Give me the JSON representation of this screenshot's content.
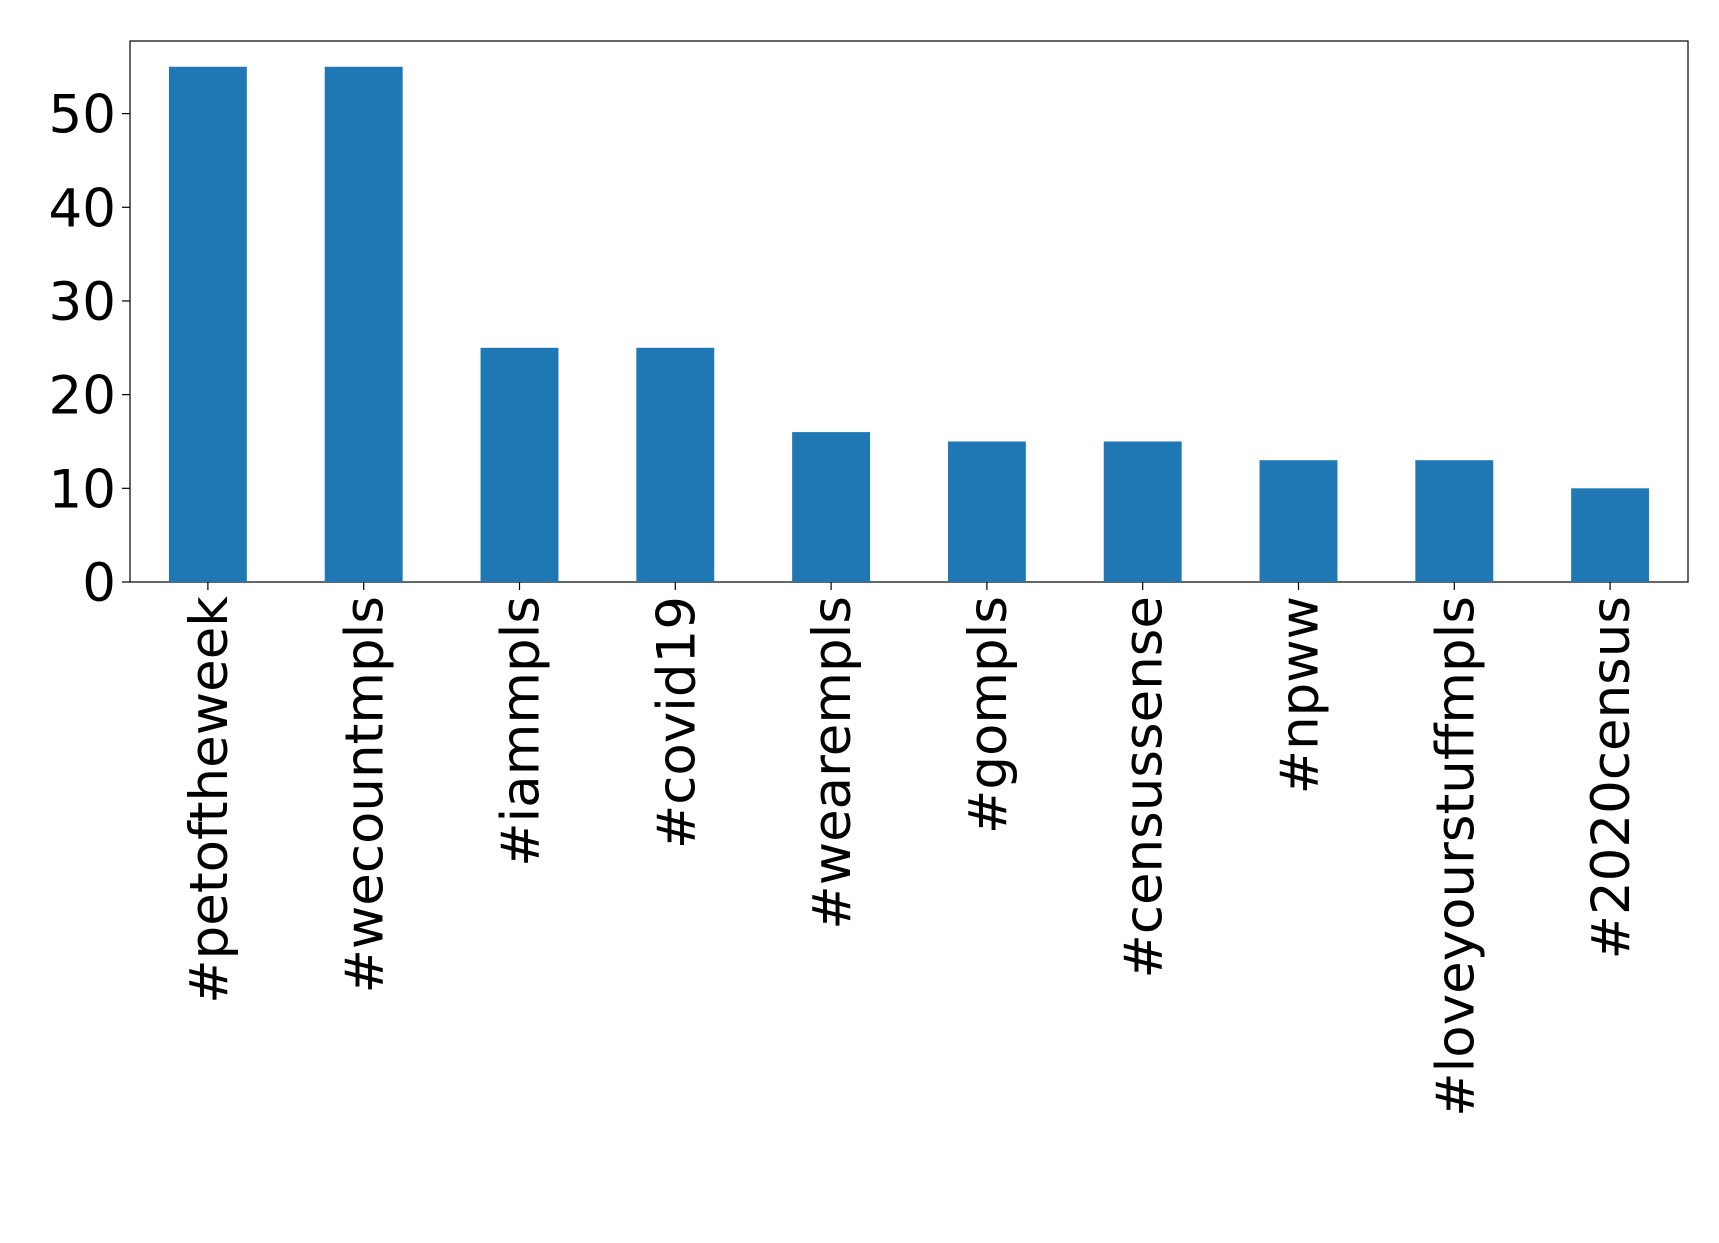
{
  "chart_data": {
    "type": "bar",
    "categories": [
      "#petoftheweek",
      "#wecountmpls",
      "#iammpls",
      "#covid19",
      "#wearempls",
      "#gompls",
      "#censussense",
      "#npww",
      "#loveyourstuffmpls",
      "#2020census"
    ],
    "values": [
      55,
      55,
      25,
      25,
      16,
      15,
      15,
      13,
      13,
      10
    ],
    "color": "#1f77b4",
    "ylim": [
      0,
      57.75
    ],
    "yticks": [
      0,
      10,
      20,
      30,
      40,
      50
    ],
    "grid": false
  }
}
